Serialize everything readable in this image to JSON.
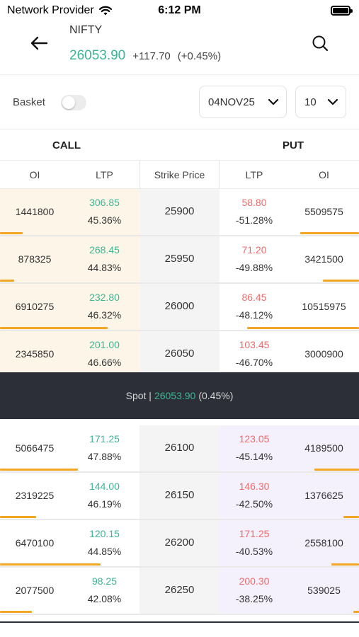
{
  "status_bar": {
    "carrier": "Network Provider",
    "time": "6:12 PM"
  },
  "header": {
    "back_icon": "arrow-left-icon",
    "symbol": "NIFTY",
    "ltp": "26053.90",
    "change": "+117.70",
    "change_pct": "(+0.45%)",
    "search_icon": "search-icon"
  },
  "toolbar": {
    "basket_label": "Basket",
    "basket_enabled": false,
    "expiry": "04NOV25",
    "strike_count": "10"
  },
  "sides": {
    "call": "CALL",
    "put": "PUT"
  },
  "columns": {
    "oi": "OI",
    "ltp": "LTP",
    "strike": "Strike Price"
  },
  "colors": {
    "positive": "#3cb594",
    "negative": "#ee6b6b",
    "itm_call_bg": "#fdf6e8",
    "itm_put_bg": "#f4f0fc",
    "oi_bar": "#f2a623",
    "spot_bg": "#2c2f38"
  },
  "spot": {
    "label": "Spot |",
    "value": "26053.90",
    "pct": "(0.45%)"
  },
  "rows": [
    {
      "strike": "25900",
      "call_oi": "1441800",
      "call_ltp": "306.85",
      "call_pct": "45.36%",
      "put_ltp": "58.80",
      "put_pct": "-51.28%",
      "put_oi": "5509575",
      "call_oi_fill": 0.16,
      "put_oi_fill": 0.42
    },
    {
      "strike": "25950",
      "call_oi": "878325",
      "call_ltp": "268.45",
      "call_pct": "44.83%",
      "put_ltp": "71.20",
      "put_pct": "-49.88%",
      "put_oi": "3421500",
      "call_oi_fill": 0.1,
      "put_oi_fill": 0.26
    },
    {
      "strike": "26000",
      "call_oi": "6910275",
      "call_ltp": "232.80",
      "call_pct": "46.32%",
      "put_ltp": "86.45",
      "put_pct": "-48.12%",
      "put_oi": "10515975",
      "call_oi_fill": 0.77,
      "put_oi_fill": 0.8
    },
    {
      "strike": "26050",
      "call_oi": "2345850",
      "call_ltp": "201.00",
      "call_pct": "46.66%",
      "put_ltp": "103.45",
      "put_pct": "-46.70%",
      "put_oi": "3000900",
      "call_oi_fill": 0.26,
      "put_oi_fill": 0.23
    },
    {
      "strike": "26100",
      "call_oi": "5066475",
      "call_ltp": "171.25",
      "call_pct": "47.88%",
      "put_ltp": "123.05",
      "put_pct": "-45.14%",
      "put_oi": "4189500",
      "call_oi_fill": 0.56,
      "put_oi_fill": 0.32
    },
    {
      "strike": "26150",
      "call_oi": "2319225",
      "call_ltp": "144.00",
      "call_pct": "46.19%",
      "put_ltp": "146.30",
      "put_pct": "-42.50%",
      "put_oi": "1376625",
      "call_oi_fill": 0.26,
      "put_oi_fill": 0.11
    },
    {
      "strike": "26200",
      "call_oi": "6470100",
      "call_ltp": "120.15",
      "call_pct": "44.85%",
      "put_ltp": "171.25",
      "put_pct": "-40.53%",
      "put_oi": "2558100",
      "call_oi_fill": 0.72,
      "put_oi_fill": 0.2
    },
    {
      "strike": "26250",
      "call_oi": "2077500",
      "call_ltp": "98.25",
      "call_pct": "42.08%",
      "put_ltp": "200.30",
      "put_pct": "-38.25%",
      "put_oi": "539025",
      "call_oi_fill": 0.23,
      "put_oi_fill": 0.04
    }
  ]
}
